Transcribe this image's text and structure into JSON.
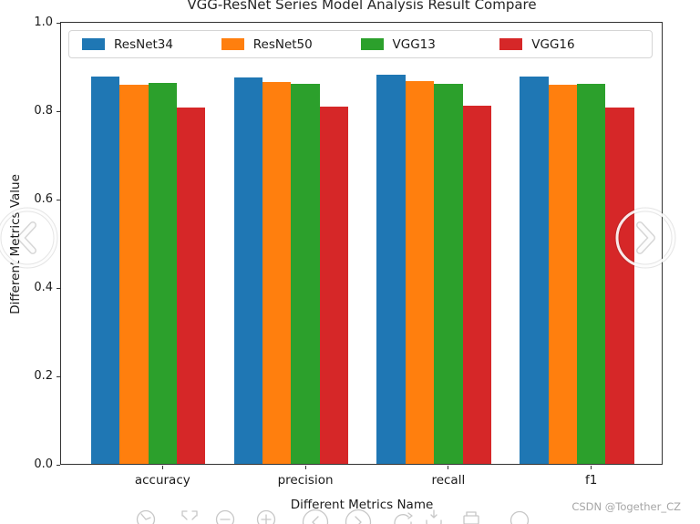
{
  "chart_data": {
    "type": "bar",
    "title": "VGG-ResNet Series Model Analysis Result Compare",
    "xlabel": "Different Metrics Name",
    "ylabel": "Different Metrics Value",
    "categories": [
      "accuracy",
      "precision",
      "recall",
      "f1"
    ],
    "series": [
      {
        "name": "ResNet34",
        "color": "#1f77b4",
        "values": [
          0.878,
          0.877,
          0.883,
          0.878
        ]
      },
      {
        "name": "ResNet50",
        "color": "#ff7f0e",
        "values": [
          0.859,
          0.865,
          0.868,
          0.86
        ]
      },
      {
        "name": "VGG13",
        "color": "#2ca02c",
        "values": [
          0.863,
          0.862,
          0.861,
          0.861
        ]
      },
      {
        "name": "VGG16",
        "color": "#d62728",
        "values": [
          0.808,
          0.81,
          0.812,
          0.809
        ]
      }
    ],
    "ylim": [
      0.0,
      1.0
    ],
    "xlim": [
      -0.71,
      3.5
    ],
    "y_ticks": [
      0.0,
      0.2,
      0.4,
      0.6,
      0.8,
      1.0
    ],
    "bar_width_data": 0.2,
    "bar_offsets_data": [
      -0.4,
      -0.2,
      0.0,
      0.2
    ],
    "grid": false,
    "legend_position": "upper center, horizontal row inside plot"
  },
  "watermark": {
    "text": "CSDN @Together_CZ",
    "color": "#a6a6a6"
  },
  "viewer": {
    "prev_icon": "chevron-left",
    "next_icon": "chevron-right",
    "toolbar_icons": [
      "clock-icon",
      "fullscreen-icon",
      "zoom-out-icon",
      "zoom-in-icon",
      "prev-image-icon",
      "next-image-icon",
      "rotate-right-icon",
      "download-icon",
      "print-icon",
      "info-icon"
    ]
  }
}
